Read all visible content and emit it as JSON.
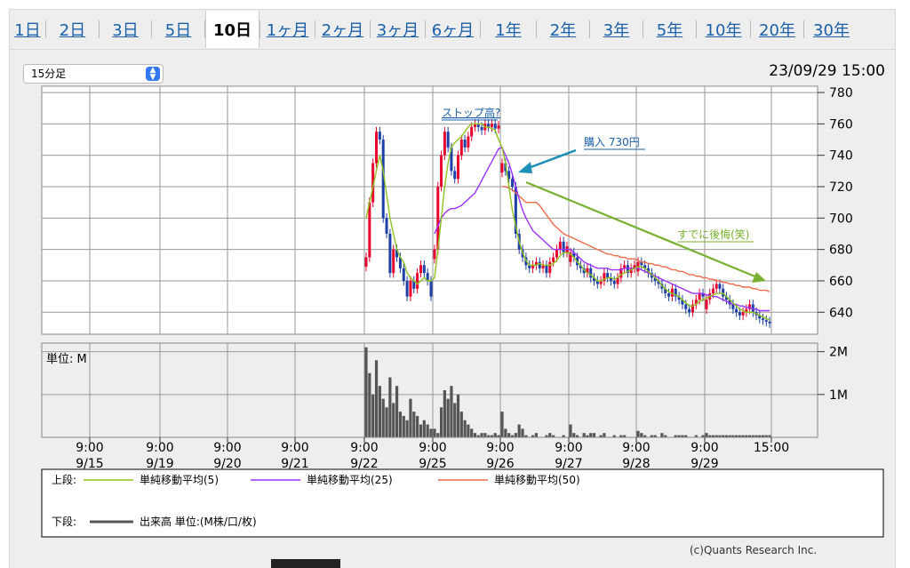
{
  "tabs": [
    "1日",
    "2日",
    "3日",
    "5日",
    "10日",
    "1ヶ月",
    "2ヶ月",
    "3ヶ月",
    "6ヶ月",
    "1年",
    "2年",
    "3年",
    "5年",
    "10年",
    "20年",
    "30年"
  ],
  "active_tab": "10日",
  "interval_select": "15分足",
  "datetime": "23/09/29 15:00",
  "volume_unit_label": "単位: M",
  "annotations": {
    "stop_high": "ストップ高?",
    "buy": "購入 730円",
    "regret": "すでに後悔(笑)"
  },
  "legend": {
    "upper_label": "上段:",
    "ma5": "単純移動平均(5)",
    "ma25": "単純移動平均(25)",
    "ma50": "単純移動平均(50)",
    "lower_label": "下段:",
    "volume": "出来高 単位:(M株/口/枚)"
  },
  "copyright": "(c)Quants Research Inc.",
  "colors": {
    "up": "#e8002d",
    "down": "#1e3fa8",
    "ma5": "#8fc21f",
    "ma25": "#9b30ff",
    "ma50": "#f26a4a",
    "annot_arrow": "#1e8fb5",
    "trend_arrow": "#77b12f",
    "volume": "#555555"
  },
  "chart_data": [
    {
      "type": "candlestick",
      "x_tick_labels": [
        [
          "9:00",
          "9/15"
        ],
        [
          "9:00",
          "9/19"
        ],
        [
          "9:00",
          "9/20"
        ],
        [
          "9:00",
          "9/21"
        ],
        [
          "9:00",
          "9/22"
        ],
        [
          "9:00",
          "9/25"
        ],
        [
          "9:00",
          "9/26"
        ],
        [
          "9:00",
          "9/27"
        ],
        [
          "9:00",
          "9/28"
        ],
        [
          "9:00",
          "9/29"
        ],
        [
          "15:00",
          ""
        ]
      ],
      "ylim": [
        626,
        784
      ],
      "y_ticks": [
        640,
        660,
        680,
        700,
        720,
        740,
        760,
        780
      ],
      "series_close_by_day": {
        "9/22": [
          675,
          710,
          735,
          755,
          750,
          700,
          690,
          665,
          680,
          675,
          668,
          660,
          650,
          660,
          655,
          665,
          670,
          665,
          660,
          650
        ],
        "9/25": [
          680,
          720,
          740,
          755,
          745,
          730,
          725,
          740,
          750,
          745,
          752,
          758,
          760,
          758,
          756,
          760,
          758,
          760,
          757,
          759
        ],
        "9/26": [
          735,
          730,
          725,
          720,
          690,
          680,
          675,
          670,
          668,
          670,
          672,
          668,
          670,
          665,
          672,
          675,
          680,
          685,
          678,
          682
        ],
        "9/27": [
          678,
          675,
          670,
          668,
          665,
          668,
          662,
          660,
          658,
          660,
          665,
          662,
          660,
          658,
          662,
          668,
          670,
          665,
          668,
          670
        ],
        "9/28": [
          672,
          670,
          668,
          665,
          662,
          660,
          658,
          655,
          652,
          650,
          655,
          650,
          648,
          645,
          642,
          640,
          645,
          648,
          652,
          650
        ],
        "9/29": [
          648,
          652,
          655,
          658,
          655,
          650,
          648,
          645,
          642,
          640,
          638,
          640,
          642,
          645,
          640,
          638,
          636,
          635,
          634,
          633
        ]
      },
      "ma5_by_day": {
        "9/22": [
          700,
          710,
          720,
          730,
          740,
          730,
          715,
          700,
          690,
          680,
          675,
          672,
          665,
          662,
          660,
          658,
          660,
          662,
          660,
          660
        ],
        "9/25": [
          662,
          680,
          700,
          720,
          735,
          745,
          748,
          750,
          752,
          755,
          758,
          760,
          760,
          760,
          760,
          758,
          758,
          757,
          756,
          750
        ],
        "9/26": [
          745,
          735,
          720,
          705,
          695,
          685,
          678,
          673,
          670,
          670,
          670,
          671,
          670,
          670,
          670,
          671,
          673,
          676,
          678,
          678
        ],
        "9/27": [
          677,
          675,
          672,
          670,
          667,
          665,
          664,
          662,
          660,
          660,
          661,
          662,
          662,
          661,
          662,
          664,
          665,
          666,
          667,
          668
        ],
        "9/28": [
          669,
          669,
          668,
          666,
          664,
          662,
          660,
          657,
          655,
          653,
          652,
          651,
          650,
          648,
          646,
          644,
          644,
          645,
          647,
          648
        ],
        "9/29": [
          649,
          650,
          651,
          652,
          652,
          652,
          650,
          648,
          646,
          644,
          642,
          641,
          640,
          640,
          640,
          639,
          638,
          637,
          636,
          635
        ]
      },
      "ma25_by_day": {
        "9/25": [
          690,
          695,
          700,
          703,
          705,
          706,
          706,
          707,
          708,
          710,
          712,
          714,
          716,
          720,
          724,
          728,
          732,
          736,
          740,
          744
        ],
        "9/26": [
          745,
          740,
          735,
          728,
          720,
          712,
          705,
          700,
          696,
          692,
          690,
          688,
          686,
          684,
          682,
          680,
          680,
          680,
          680,
          680
        ],
        "9/27": [
          680,
          678,
          676,
          674,
          672,
          671,
          670,
          669,
          668,
          668,
          668,
          668,
          667,
          667,
          667,
          667,
          668,
          668,
          668,
          668
        ],
        "9/28": [
          668,
          667,
          666,
          665,
          664,
          663,
          662,
          661,
          660,
          659,
          658,
          657,
          656,
          655,
          654,
          653,
          652,
          652,
          652,
          652
        ],
        "9/29": [
          651,
          651,
          650,
          650,
          649,
          648,
          647,
          646,
          645,
          645,
          644,
          644,
          643,
          643,
          642,
          642,
          641,
          641,
          641,
          641
        ]
      },
      "ma50_by_day": {
        "9/26": [
          720,
          720,
          719,
          718,
          716,
          714,
          712,
          710,
          710,
          710,
          710,
          708,
          705,
          702,
          699,
          696,
          694,
          692,
          690,
          689
        ],
        "9/27": [
          688,
          687,
          686,
          685,
          684,
          683,
          682,
          681,
          680,
          679,
          678,
          677,
          677,
          676,
          676,
          675,
          675,
          674,
          674,
          674
        ],
        "9/28": [
          673,
          672,
          672,
          671,
          671,
          670,
          670,
          669,
          669,
          668,
          667,
          667,
          666,
          666,
          665,
          664,
          664,
          663,
          663,
          662
        ],
        "9/29": [
          662,
          661,
          661,
          660,
          660,
          659,
          659,
          658,
          658,
          657,
          657,
          656,
          656,
          656,
          655,
          655,
          654,
          654,
          654,
          653
        ]
      }
    },
    {
      "type": "bar",
      "title": "出来高",
      "ylim": [
        0,
        2.2
      ],
      "y_ticks": [
        {
          "v": 1,
          "label": "1M"
        },
        {
          "v": 2,
          "label": "2M"
        }
      ],
      "volume_by_day": {
        "9/22": [
          2.1,
          1.5,
          1.0,
          1.8,
          1.2,
          0.9,
          0.7,
          1.4,
          0.8,
          1.2,
          0.6,
          0.5,
          0.4,
          0.9,
          0.6,
          0.5,
          0.3,
          0.4,
          0.3,
          0.2
        ],
        "9/25": [
          0.2,
          0.1,
          0.7,
          1.1,
          0.9,
          1.2,
          0.8,
          1.0,
          0.6,
          0.4,
          0.3,
          0.2,
          0.1,
          0.05,
          0.1,
          0.1,
          0.05,
          0.05,
          0.1,
          0.05
        ],
        "9/26": [
          0.6,
          0.2,
          0.1,
          0.05,
          0.1,
          0.3,
          0.2,
          0.05,
          0.0,
          0.05,
          0.1,
          0.0,
          0.0,
          0.05,
          0.1,
          0.05,
          0.0,
          0.0,
          0.05,
          0.0
        ],
        "9/27": [
          0.3,
          0.1,
          0.05,
          0.0,
          0.1,
          0.05,
          0.1,
          0.1,
          0.0,
          0.05,
          0.1,
          0.0,
          0.0,
          0.05,
          0.0,
          0.05,
          0.05,
          0.0,
          0.0,
          0.0
        ],
        "9/28": [
          0.15,
          0.1,
          0.05,
          0.0,
          0.05,
          0.05,
          0.0,
          0.1,
          0.05,
          0.0,
          0.0,
          0.05,
          0.05,
          0.05,
          0.05,
          0.0,
          0.0,
          0.05,
          0.0,
          0.05
        ],
        "9/29": [
          0.1,
          0.05,
          0.05,
          0.05,
          0.05,
          0.05,
          0.05,
          0.05,
          0.05,
          0.05,
          0.05,
          0.05,
          0.05,
          0.05,
          0.05,
          0.05,
          0.05,
          0.05,
          0.05,
          0.05
        ]
      }
    }
  ]
}
